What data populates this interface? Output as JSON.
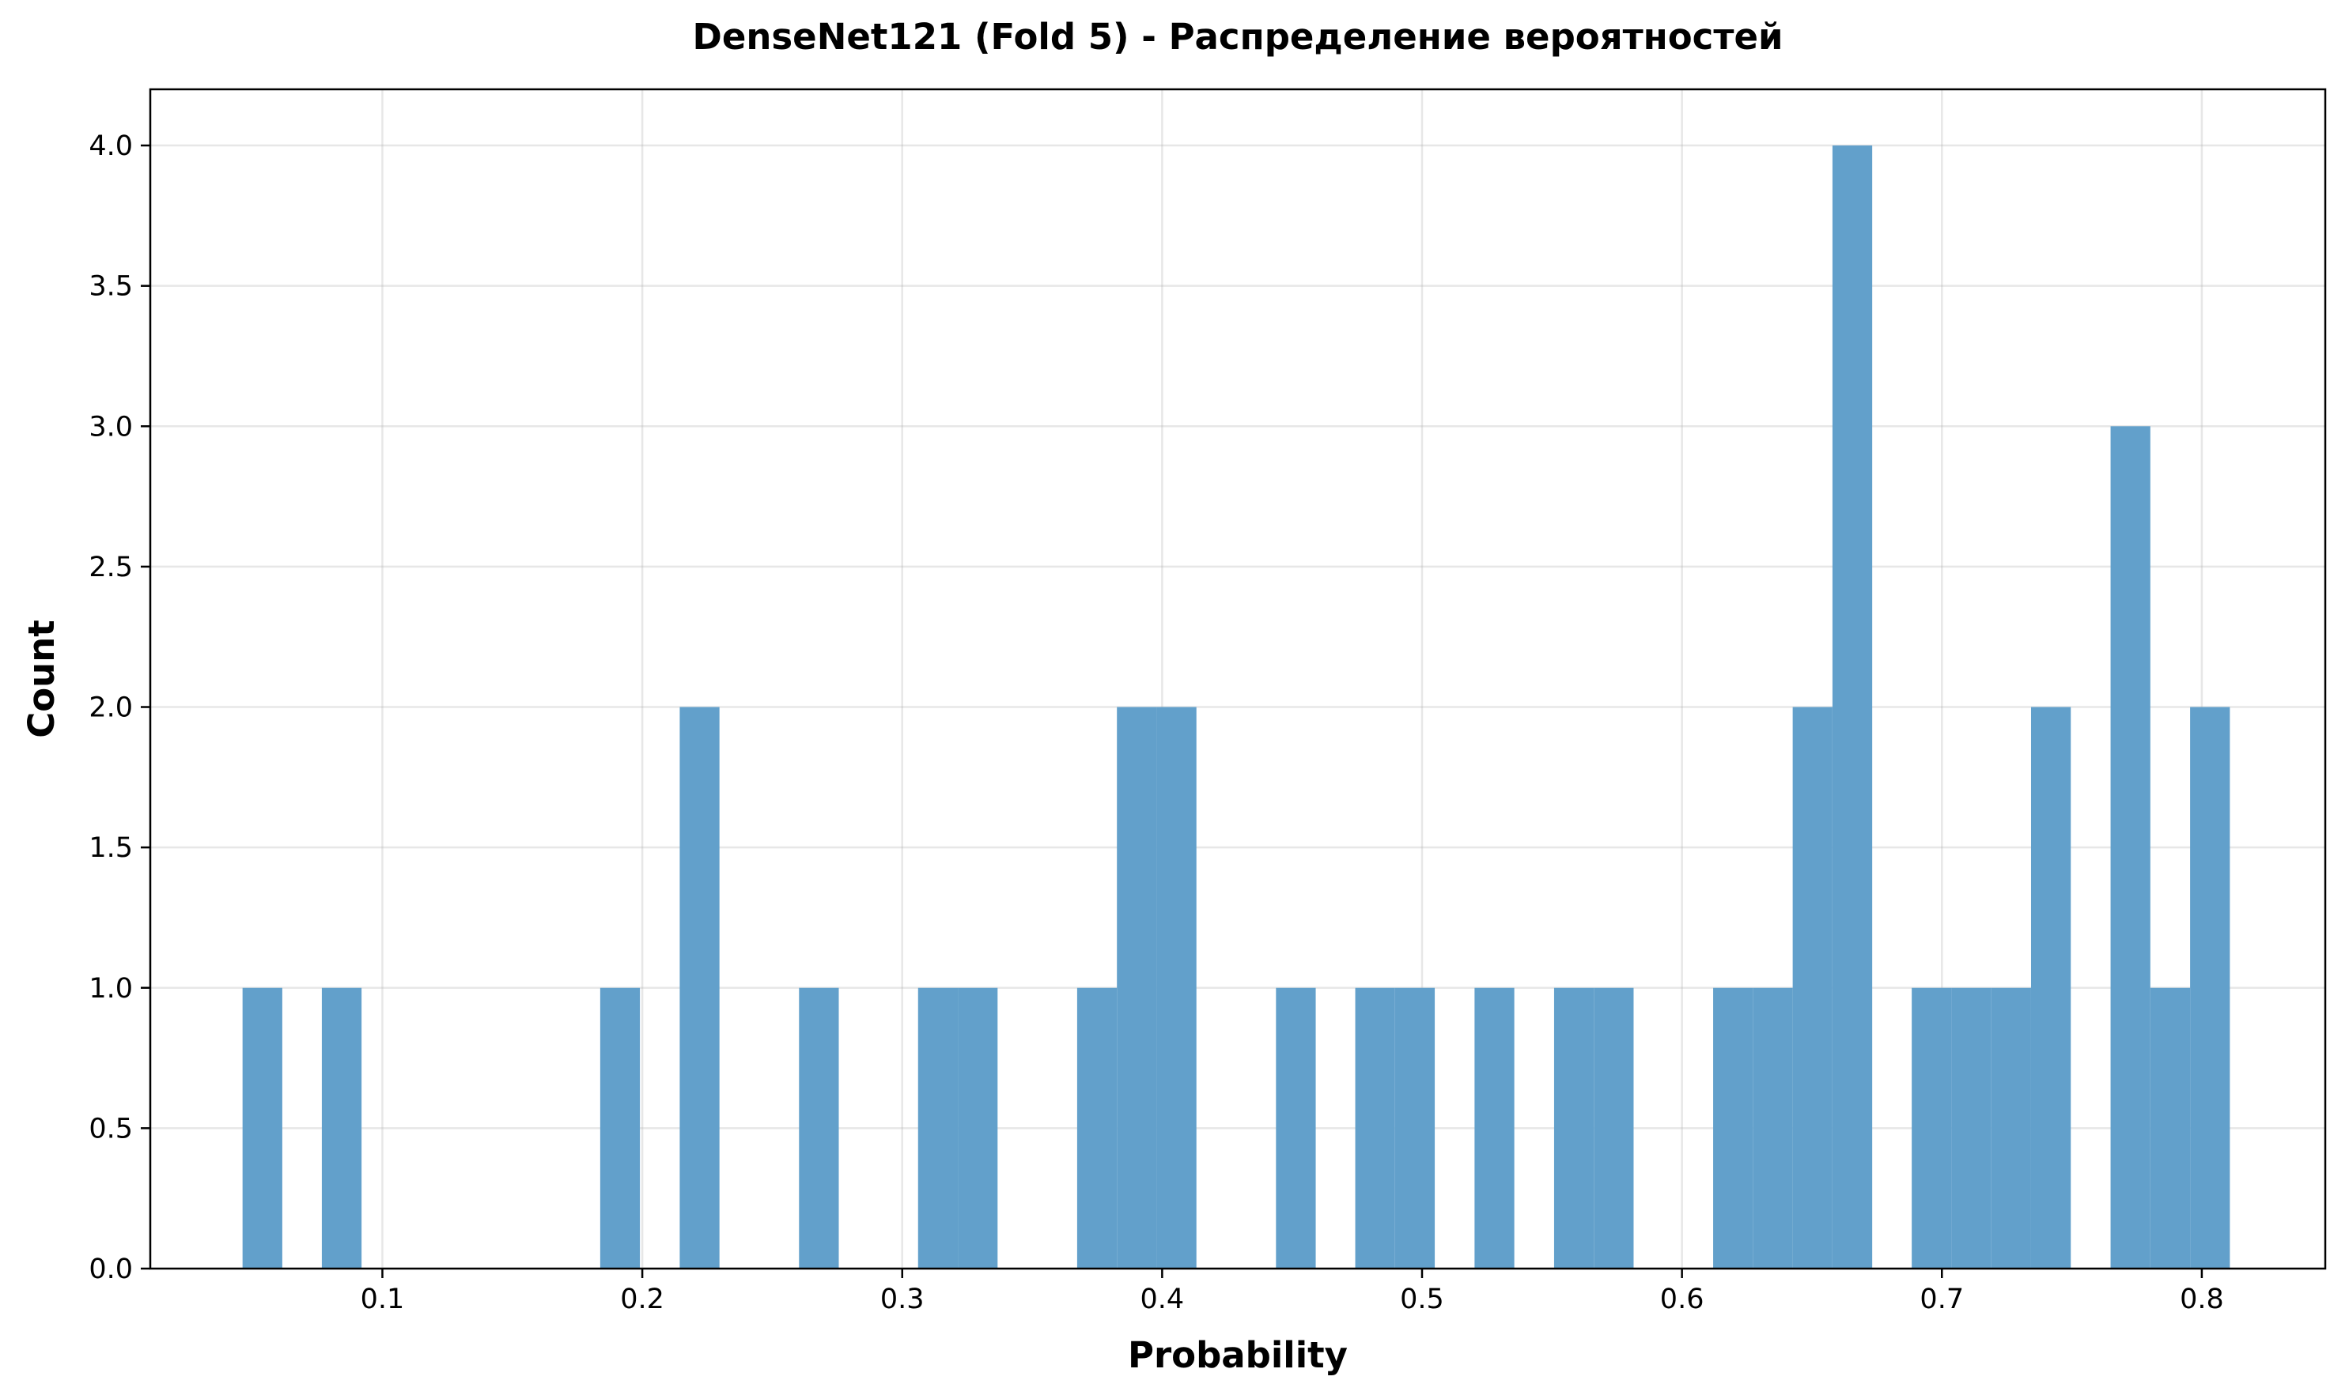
{
  "chart_data": {
    "type": "bar",
    "subtype": "histogram",
    "title": "DenseNet121 (Fold 5) - Распределение вероятностей",
    "xlabel": "Probability",
    "ylabel": "Count",
    "xlim": [
      0.0107,
      0.8475
    ],
    "ylim": [
      0.0,
      4.2
    ],
    "bin_width": 0.01529,
    "grid": true,
    "legend": "none",
    "bar_color": "#62a0cb",
    "xticks": [
      {
        "value": 0.1,
        "label": "0.1"
      },
      {
        "value": 0.2,
        "label": "0.2"
      },
      {
        "value": 0.3,
        "label": "0.3"
      },
      {
        "value": 0.4,
        "label": "0.4"
      },
      {
        "value": 0.5,
        "label": "0.5"
      },
      {
        "value": 0.6,
        "label": "0.6"
      },
      {
        "value": 0.7,
        "label": "0.7"
      },
      {
        "value": 0.8,
        "label": "0.8"
      }
    ],
    "yticks": [
      {
        "value": 0.0,
        "label": "0.0"
      },
      {
        "value": 0.5,
        "label": "0.5"
      },
      {
        "value": 1.0,
        "label": "1.0"
      },
      {
        "value": 1.5,
        "label": "1.5"
      },
      {
        "value": 2.0,
        "label": "2.0"
      },
      {
        "value": 2.5,
        "label": "2.5"
      },
      {
        "value": 3.0,
        "label": "3.0"
      },
      {
        "value": 3.5,
        "label": "3.5"
      },
      {
        "value": 4.0,
        "label": "4.0"
      }
    ],
    "bins": [
      {
        "x0": 0.0462,
        "count": 1
      },
      {
        "x0": 0.0767,
        "count": 1
      },
      {
        "x0": 0.1838,
        "count": 1
      },
      {
        "x0": 0.2144,
        "count": 2
      },
      {
        "x0": 0.2603,
        "count": 1
      },
      {
        "x0": 0.3061,
        "count": 1
      },
      {
        "x0": 0.3214,
        "count": 1
      },
      {
        "x0": 0.3673,
        "count": 1
      },
      {
        "x0": 0.3826,
        "count": 2
      },
      {
        "x0": 0.3979,
        "count": 2
      },
      {
        "x0": 0.4438,
        "count": 1
      },
      {
        "x0": 0.4743,
        "count": 1
      },
      {
        "x0": 0.4896,
        "count": 1
      },
      {
        "x0": 0.5202,
        "count": 1
      },
      {
        "x0": 0.5508,
        "count": 1
      },
      {
        "x0": 0.5661,
        "count": 1
      },
      {
        "x0": 0.612,
        "count": 1
      },
      {
        "x0": 0.6273,
        "count": 1
      },
      {
        "x0": 0.6426,
        "count": 2
      },
      {
        "x0": 0.6579,
        "count": 4
      },
      {
        "x0": 0.6884,
        "count": 1
      },
      {
        "x0": 0.7037,
        "count": 1
      },
      {
        "x0": 0.719,
        "count": 1
      },
      {
        "x0": 0.7343,
        "count": 2
      },
      {
        "x0": 0.7649,
        "count": 3
      },
      {
        "x0": 0.7802,
        "count": 1
      },
      {
        "x0": 0.7955,
        "count": 2
      }
    ]
  }
}
